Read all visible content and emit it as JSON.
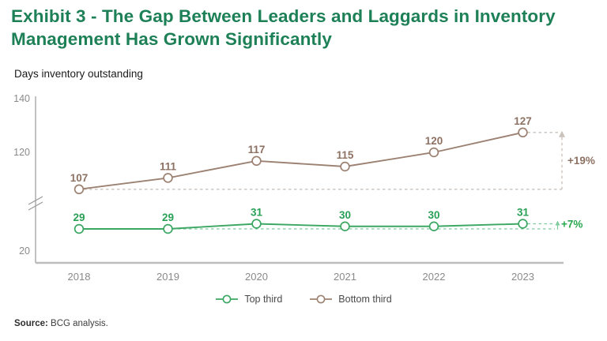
{
  "header": {
    "title_line1": "Exhibit 3 - The Gap Between Leaders and Laggards in Inventory",
    "title_line2": "Management Has Grown Significantly",
    "title_color": "#1e8057"
  },
  "chart_data": {
    "type": "line",
    "title": "Exhibit 3 - The Gap Between Leaders and Laggards in Inventory Management Has Grown Significantly",
    "ylabel": "Days inventory outstanding",
    "xlabel": "",
    "categories": [
      "2018",
      "2019",
      "2020",
      "2021",
      "2022",
      "2023"
    ],
    "series": [
      {
        "name": "Top third",
        "values": [
          29,
          29,
          31,
          30,
          30,
          31
        ],
        "color": "#3ba763",
        "label_color": "#29a056",
        "dash_color": "#7ecb9c",
        "change_label": "+7%",
        "change_color": "#28a84e"
      },
      {
        "name": "Bottom third",
        "values": [
          107,
          111,
          117,
          115,
          120,
          127
        ],
        "color": "#9c8272",
        "label_color": "#8d7263",
        "dash_color": "#c9c1ba",
        "change_label": "+19%",
        "change_color": "#8d7263"
      }
    ],
    "yticks": [
      "140",
      "120",
      "20"
    ],
    "axis_break": true,
    "grid": false,
    "legend_position": "bottom",
    "axis_color": "#a8a8a8",
    "tick_label_color": "#8a8a8a"
  },
  "footer": {
    "source_label": "Source:",
    "source_text": " BCG analysis."
  }
}
